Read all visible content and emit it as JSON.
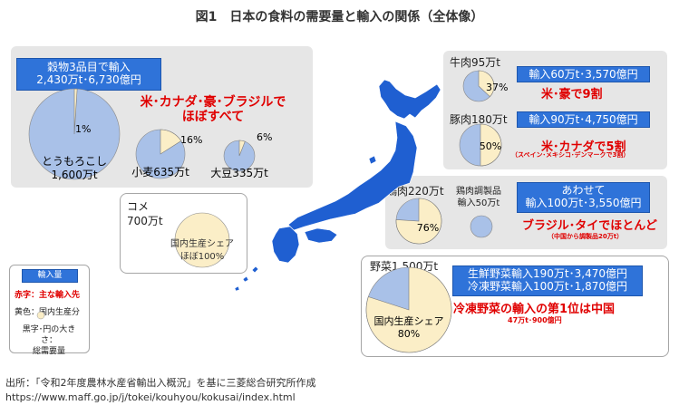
{
  "title": "図1　日本の食料の需要量と輸入の関係（全体像）",
  "grains": {
    "header_line1": "穀物3品目で輸入",
    "header_line2": "2,430万t･6,730億円",
    "note_line1": "米･カナダ･豪･ブラジルで",
    "note_line2": "ほぼすべて",
    "corn_pct": "1%",
    "corn_name": "とうもろこし",
    "corn_amount": "1,600万t",
    "wheat_pct": "16%",
    "wheat_label": "小麦635万t",
    "soy_pct": "6%",
    "soy_label": "大豆335万t"
  },
  "rice": {
    "label_line1": "コメ",
    "label_line2": "700万t",
    "share_line1": "国内生産シェア",
    "share_line2": "ほぼ100%"
  },
  "legend": {
    "title": "輸入量",
    "red_line": "赤字：主な輸入先",
    "yellow_line": "黄色：国内生産分",
    "black_line1": "黒字･円の大きさ：",
    "black_line2": "総需要量"
  },
  "beef": {
    "label": "牛肉95万t",
    "pct": "37%",
    "import": "輸入60万t･3,570億円",
    "note": "米･豪で9割"
  },
  "pork": {
    "label": "豚肉180万t",
    "pct": "50%",
    "import": "輸入90万t･4,750億円",
    "note": "米･カナダで5割",
    "subnote": "（スペイン･メキシコ･デンマークで3割）"
  },
  "chicken": {
    "label": "鶏肉220万t",
    "pct": "76%",
    "processed_line1": "鶏肉調製品",
    "processed_line2": "輸入50万t",
    "combined_line1": "あわせて",
    "combined_line2": "輸入100万t･3,550億円",
    "note": "ブラジル･タイでほとんど",
    "subnote": "（中国から調製品20万t）"
  },
  "vegetables": {
    "label": "野菜1,500万t",
    "share_line1": "国内生産シェア",
    "share_line2": "80%",
    "import_line1": "生鮮野菜輸入190万t･3,470億円",
    "import_line2": "冷凍野菜輸入100万t･1,870億円",
    "note": "冷凍野菜の輸入の第1位は中国",
    "subnote": "47万t･900億円"
  },
  "source": {
    "line1": "出所：「令和2年度農林水産省輸出入概況」を基に三菱総合研究所作成",
    "line2": "https://www.maff.go.jp/j/tokei/kouhyou/kokusai/index.html"
  },
  "colors": {
    "import_blue": "#a9c1e8",
    "domestic_yellow": "#fbeec7",
    "header_blue": "#2f73d9",
    "japan_blue": "#1f5fd1",
    "panel_gray": "#e6e6e6",
    "note_red": "#e00000"
  },
  "chart_data": {
    "type": "pie",
    "unit": "万t",
    "pies": [
      {
        "name": "とうもろこし",
        "total": 1600,
        "domestic_share_pct": 1
      },
      {
        "name": "小麦",
        "total": 635,
        "domestic_share_pct": 16
      },
      {
        "name": "大豆",
        "total": 335,
        "domestic_share_pct": 6
      },
      {
        "name": "コメ",
        "total": 700,
        "domestic_share_pct": 100
      },
      {
        "name": "牛肉",
        "total": 95,
        "domestic_share_pct": 37
      },
      {
        "name": "豚肉",
        "total": 180,
        "domestic_share_pct": 50
      },
      {
        "name": "鶏肉",
        "total": 220,
        "domestic_share_pct": 76
      },
      {
        "name": "鶏肉調製品",
        "total": 50,
        "domestic_share_pct": 0
      },
      {
        "name": "野菜",
        "total": 1500,
        "domestic_share_pct": 80
      }
    ]
  }
}
